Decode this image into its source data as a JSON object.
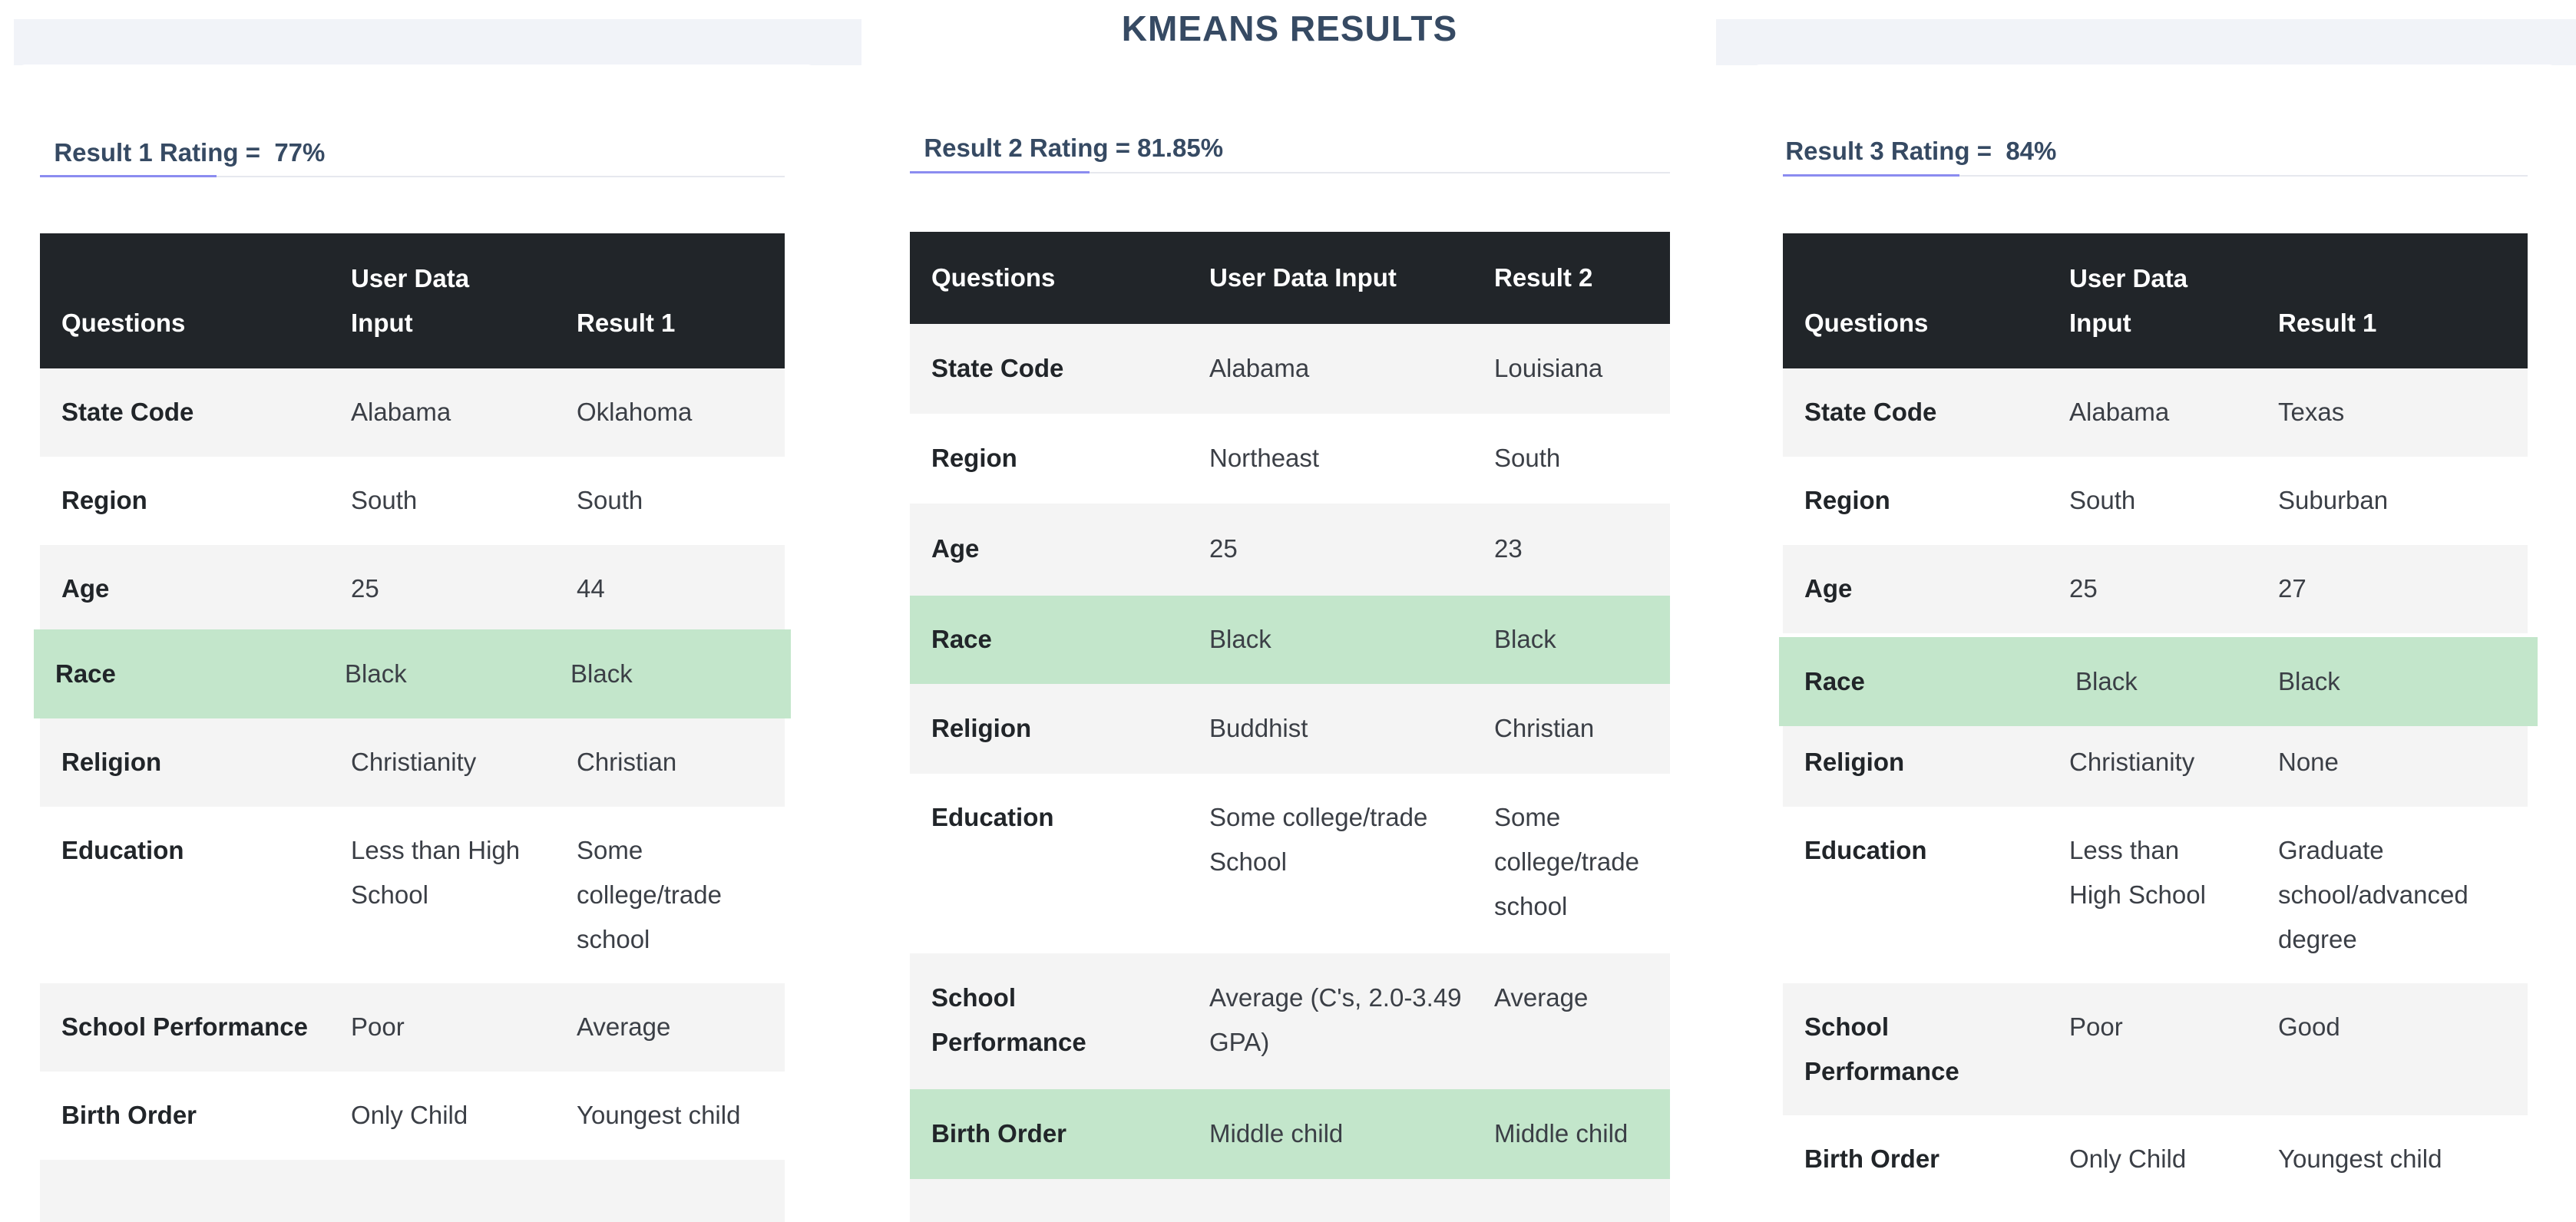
{
  "page_title": "KMEANS RESULTS",
  "panels": [
    {
      "rating_label": "Result 1 Rating =",
      "rating_value": "77%",
      "headers": [
        "Questions",
        "User Data Input",
        "Result 1"
      ],
      "rows": [
        {
          "q": "State Code",
          "input": "Alabama",
          "result": "Oklahoma"
        },
        {
          "q": "Region",
          "input": "South",
          "result": "South"
        },
        {
          "q": "Age",
          "input": "25",
          "result": "44"
        },
        {
          "q": "Race",
          "input": "Black",
          "result": "Black",
          "match": true
        },
        {
          "q": "Religion",
          "input": "Christianity",
          "result": "Christian"
        },
        {
          "q": "Education",
          "input": "Less than High School",
          "result": "Some college/trade school"
        },
        {
          "q": "School Performance",
          "input": "Poor",
          "result": "Average"
        },
        {
          "q": "Birth Order",
          "input": "Only Child",
          "result": "Youngest child"
        }
      ]
    },
    {
      "rating_label": "Result 2 Rating =",
      "rating_value": "81.85%",
      "headers": [
        "Questions",
        "User Data Input",
        "Result 2"
      ],
      "rows": [
        {
          "q": "State Code",
          "input": "Alabama",
          "result": "Louisiana"
        },
        {
          "q": "Region",
          "input": "Northeast",
          "result": "South"
        },
        {
          "q": "Age",
          "input": "25",
          "result": "23"
        },
        {
          "q": "Race",
          "input": "Black",
          "result": "Black",
          "match": true
        },
        {
          "q": "Religion",
          "input": "Buddhist",
          "result": "Christian"
        },
        {
          "q": "Education",
          "input": "Some college/trade School",
          "result": "Some college/trade school"
        },
        {
          "q": "School Performance",
          "input": "Average (C's, 2.0-3.49 GPA)",
          "result": "Average"
        },
        {
          "q": "Birth Order",
          "input": "Middle child",
          "result": "Middle child",
          "match": true
        }
      ]
    },
    {
      "rating_label": "Result 3 Rating =",
      "rating_value": "84%",
      "headers": [
        "Questions",
        "User Data Input",
        "Result 1"
      ],
      "rows": [
        {
          "q": "State Code",
          "input": "Alabama",
          "result": "Texas"
        },
        {
          "q": "Region",
          "input": "South",
          "result": "Suburban"
        },
        {
          "q": "Age",
          "input": "25",
          "result": "27"
        },
        {
          "q": "Race",
          "input": "Black",
          "result": "Black",
          "match": true
        },
        {
          "q": "Religion",
          "input": "Christianity",
          "result": "None"
        },
        {
          "q": "Education",
          "input": "Less than High School",
          "result": "Graduate school/advanced degree"
        },
        {
          "q": "School Performance",
          "input": "Poor",
          "result": "Good"
        },
        {
          "q": "Birth Order",
          "input": "Only Child",
          "result": "Youngest child"
        }
      ]
    }
  ],
  "colors": {
    "header_bg": "#212529",
    "match_row": "#c3e6cb",
    "stripe_row": "#f4f4f4",
    "accent": "#8b8cf0",
    "title": "#364a63"
  }
}
